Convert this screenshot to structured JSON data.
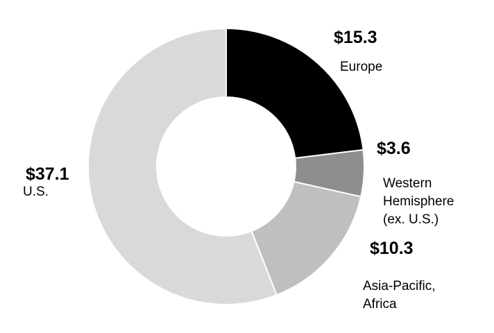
{
  "chart_data": {
    "type": "pie",
    "donut": true,
    "start": "top",
    "direction": "clockwise",
    "slices": [
      {
        "label": "Europe",
        "value": 15.3,
        "value_label": "$15.3",
        "color": "#000000"
      },
      {
        "label": "Western\nHemisphere\n(ex. U.S.)",
        "value": 3.6,
        "value_label": "$3.6",
        "color": "#8e8e8e"
      },
      {
        "label": "Asia-Pacific,\nAfrica",
        "value": 10.3,
        "value_label": "$10.3",
        "color": "#bfbfbf"
      },
      {
        "label": "U.S.",
        "value": 37.1,
        "value_label": "$37.1",
        "color": "#d9d9d9"
      }
    ],
    "separator_color": "#ffffff"
  }
}
